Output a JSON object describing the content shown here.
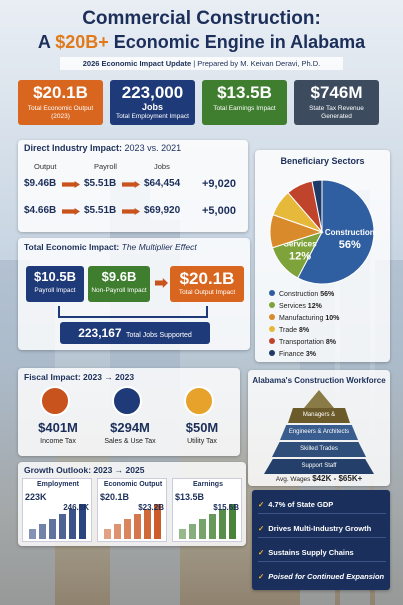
{
  "header": {
    "title": "Commercial Construction:",
    "line2_start": "A",
    "line2_highlight": "$20B+",
    "line2_end": "Economic Engine in Alabama",
    "update": "2026 Economic Impact Update",
    "author": "Prepared by M. Keivan Deravi, Ph.D."
  },
  "kpis": [
    {
      "value": "$20.1B",
      "label": "Total Economic Output (2023)"
    },
    {
      "value": "223,000",
      "sublabel": "Jobs",
      "label": "Total Employment Impact"
    },
    {
      "value": "$13.5B",
      "label": "Total Earnings Impact"
    },
    {
      "value": "$746M",
      "label": "State Tax Revenue Generated"
    }
  ],
  "direct": {
    "title": "Direct Industry Impact:",
    "subtitle": "2023 vs. 2021",
    "columns": [
      "Output",
      "Payroll",
      "Jobs"
    ],
    "rows": [
      [
        "$9.46B",
        "$5.51B",
        "$64,454",
        "+9,020"
      ],
      [
        "$4.66B",
        "$5.51B",
        "$69,920",
        "+5,000"
      ]
    ]
  },
  "chart_data": {
    "type": "pie",
    "title": "Beneficiary Sectors",
    "categories": [
      "Construction",
      "Services",
      "Manufacturing",
      "Trade",
      "Transportation",
      "Finance"
    ],
    "values": [
      56,
      12,
      10,
      8,
      8,
      3
    ],
    "value_labels": [
      "56%",
      "12%",
      "10%",
      "8%",
      "8%",
      "3%"
    ],
    "colors": [
      "#2f5fa0",
      "#7ea33a",
      "#d98a2b",
      "#e6b93a",
      "#c0442c",
      "#1f3a66"
    ]
  },
  "total": {
    "title": "Total Economic Impact:",
    "subtitle": "The Multiplier Effect",
    "boxes": [
      {
        "value": "$10.5B",
        "label": "Payroll Impact"
      },
      {
        "value": "$9.6B",
        "label": "Non-Payroll Impact"
      },
      {
        "value": "$20.1B",
        "label": "Total Output Impact"
      }
    ],
    "jobs": "223,167",
    "jobs_label": "Total Jobs Supported"
  },
  "fiscal": {
    "title": "Fiscal Impact: 2023 → 2023",
    "items": [
      {
        "value": "$401M",
        "label": "Income Tax"
      },
      {
        "value": "$294M",
        "label": "Sales & Use Tax"
      },
      {
        "value": "$50M",
        "label": "Utility Tax"
      }
    ]
  },
  "workforce": {
    "title": "Alabama's Construction Workforce",
    "levels": [
      "Managers & Executives",
      "Engineers & Architects",
      "Skilled Trades",
      "Support Staff"
    ],
    "wages_label": "Avg. Wages",
    "wages": "$42K - $65K+"
  },
  "growth": {
    "title": "Growth Outlook: 2023 → 2025",
    "charts": [
      {
        "title": "Employment",
        "start": "223K",
        "end": "246.8K"
      },
      {
        "title": "Economic Output",
        "start": "$20.1B",
        "end": "$23.2B"
      },
      {
        "title": "Earnings",
        "start": "$13.5B",
        "end": "$15.6B"
      }
    ]
  },
  "highlights": [
    "4.7% of State GDP",
    "Drives Multi-Industry Growth",
    "Sustains Supply Chains",
    "Poised for Continued Expansion"
  ]
}
